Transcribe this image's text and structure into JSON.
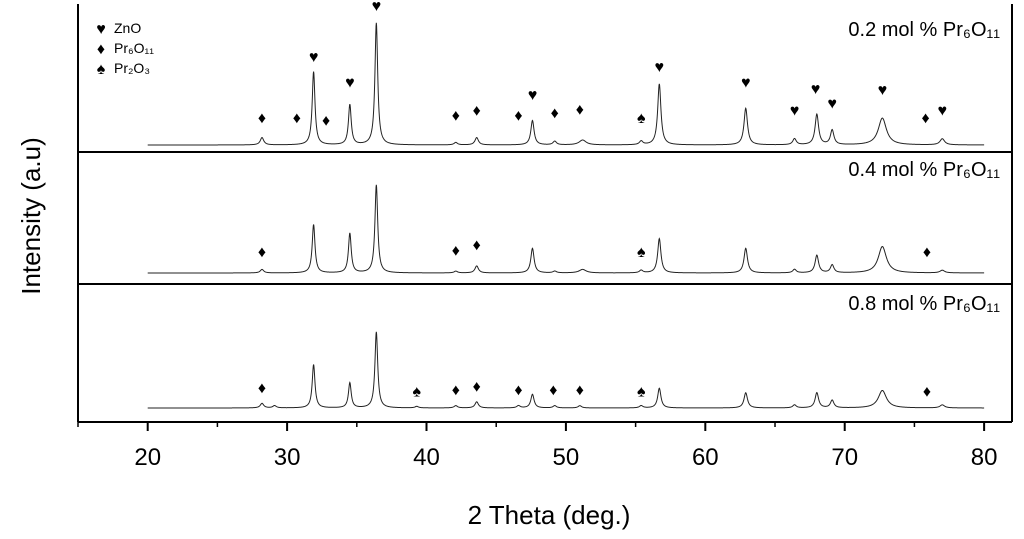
{
  "chart_data": {
    "type": "line",
    "xlabel": "2 Theta (deg.)",
    "ylabel": "Intensity (a.u)",
    "xlim": [
      15,
      82
    ],
    "xticks": [
      20,
      30,
      40,
      50,
      60,
      70,
      80
    ],
    "legend": {
      "placement": "top-left",
      "entries": [
        {
          "symbol": "♥",
          "label": "ZnO"
        },
        {
          "symbol": "♦",
          "label": "Pr₆O₁₁"
        },
        {
          "symbol": "♠",
          "label": "Pr₂O₃"
        }
      ]
    },
    "panels": [
      {
        "label": "0.2 mol % Pr₆O₁₁",
        "peaks": [
          {
            "x": 28.2,
            "h": 0.06,
            "w": 0.15
          },
          {
            "x": 31.9,
            "h": 0.6,
            "w": 0.12
          },
          {
            "x": 34.5,
            "h": 0.33,
            "w": 0.12
          },
          {
            "x": 36.4,
            "h": 1.0,
            "w": 0.12
          },
          {
            "x": 42.1,
            "h": 0.02,
            "w": 0.15
          },
          {
            "x": 43.6,
            "h": 0.06,
            "w": 0.15
          },
          {
            "x": 47.6,
            "h": 0.2,
            "w": 0.14
          },
          {
            "x": 49.2,
            "h": 0.03,
            "w": 0.15
          },
          {
            "x": 51.2,
            "h": 0.04,
            "w": 0.3
          },
          {
            "x": 55.4,
            "h": 0.03,
            "w": 0.15
          },
          {
            "x": 56.7,
            "h": 0.5,
            "w": 0.14
          },
          {
            "x": 62.9,
            "h": 0.3,
            "w": 0.15
          },
          {
            "x": 66.4,
            "h": 0.05,
            "w": 0.15
          },
          {
            "x": 68.0,
            "h": 0.25,
            "w": 0.15
          },
          {
            "x": 69.1,
            "h": 0.12,
            "w": 0.15
          },
          {
            "x": 72.7,
            "h": 0.22,
            "w": 0.35
          },
          {
            "x": 77.0,
            "h": 0.05,
            "w": 0.2
          }
        ],
        "markers": [
          {
            "x": 28.2,
            "symbol": "♦",
            "h": 0.18
          },
          {
            "x": 30.7,
            "symbol": "♦",
            "h": 0.18
          },
          {
            "x": 31.9,
            "symbol": "♥",
            "h": 0.68
          },
          {
            "x": 32.8,
            "symbol": "♦",
            "h": 0.16
          },
          {
            "x": 34.5,
            "symbol": "♥",
            "h": 0.47
          },
          {
            "x": 36.4,
            "symbol": "♥",
            "h": 1.1
          },
          {
            "x": 42.1,
            "symbol": "♦",
            "h": 0.2
          },
          {
            "x": 43.6,
            "symbol": "♦",
            "h": 0.24
          },
          {
            "x": 46.6,
            "symbol": "♦",
            "h": 0.2
          },
          {
            "x": 47.6,
            "symbol": "♥",
            "h": 0.37
          },
          {
            "x": 49.2,
            "symbol": "♦",
            "h": 0.22
          },
          {
            "x": 51.0,
            "symbol": "♦",
            "h": 0.25
          },
          {
            "x": 55.4,
            "symbol": "♠",
            "h": 0.18
          },
          {
            "x": 56.7,
            "symbol": "♥",
            "h": 0.6
          },
          {
            "x": 62.9,
            "symbol": "♥",
            "h": 0.47
          },
          {
            "x": 66.4,
            "symbol": "♥",
            "h": 0.24
          },
          {
            "x": 67.9,
            "symbol": "♥",
            "h": 0.42
          },
          {
            "x": 69.1,
            "symbol": "♥",
            "h": 0.3
          },
          {
            "x": 72.7,
            "symbol": "♥",
            "h": 0.41
          },
          {
            "x": 75.8,
            "symbol": "♦",
            "h": 0.18
          },
          {
            "x": 77.0,
            "symbol": "♥",
            "h": 0.24
          }
        ]
      },
      {
        "label": "0.4 mol % Pr₆O₁₁",
        "peaks": [
          {
            "x": 28.2,
            "h": 0.04,
            "w": 0.15
          },
          {
            "x": 31.9,
            "h": 0.55,
            "w": 0.12
          },
          {
            "x": 34.5,
            "h": 0.45,
            "w": 0.12
          },
          {
            "x": 36.4,
            "h": 1.0,
            "w": 0.12
          },
          {
            "x": 42.1,
            "h": 0.02,
            "w": 0.15
          },
          {
            "x": 43.6,
            "h": 0.08,
            "w": 0.15
          },
          {
            "x": 47.6,
            "h": 0.28,
            "w": 0.14
          },
          {
            "x": 49.2,
            "h": 0.02,
            "w": 0.15
          },
          {
            "x": 51.2,
            "h": 0.04,
            "w": 0.3
          },
          {
            "x": 55.4,
            "h": 0.03,
            "w": 0.15
          },
          {
            "x": 56.7,
            "h": 0.39,
            "w": 0.14
          },
          {
            "x": 62.9,
            "h": 0.28,
            "w": 0.15
          },
          {
            "x": 66.4,
            "h": 0.04,
            "w": 0.15
          },
          {
            "x": 68.0,
            "h": 0.2,
            "w": 0.15
          },
          {
            "x": 69.1,
            "h": 0.09,
            "w": 0.15
          },
          {
            "x": 72.7,
            "h": 0.3,
            "w": 0.35
          },
          {
            "x": 77.0,
            "h": 0.03,
            "w": 0.2
          }
        ],
        "markers": [
          {
            "x": 28.2,
            "symbol": "♦",
            "h": 0.18
          },
          {
            "x": 42.1,
            "symbol": "♦",
            "h": 0.2
          },
          {
            "x": 43.6,
            "symbol": "♦",
            "h": 0.26
          },
          {
            "x": 55.4,
            "symbol": "♠",
            "h": 0.18
          },
          {
            "x": 75.9,
            "symbol": "♦",
            "h": 0.18
          }
        ]
      },
      {
        "label": "0.8 mol % Pr₆O₁₁",
        "peaks": [
          {
            "x": 28.2,
            "h": 0.06,
            "w": 0.15
          },
          {
            "x": 29.1,
            "h": 0.03,
            "w": 0.15
          },
          {
            "x": 31.9,
            "h": 0.57,
            "w": 0.12
          },
          {
            "x": 34.5,
            "h": 0.33,
            "w": 0.12
          },
          {
            "x": 36.4,
            "h": 1.0,
            "w": 0.12
          },
          {
            "x": 39.3,
            "h": 0.02,
            "w": 0.15
          },
          {
            "x": 42.1,
            "h": 0.03,
            "w": 0.15
          },
          {
            "x": 43.6,
            "h": 0.08,
            "w": 0.15
          },
          {
            "x": 46.6,
            "h": 0.03,
            "w": 0.15
          },
          {
            "x": 47.6,
            "h": 0.18,
            "w": 0.14
          },
          {
            "x": 49.2,
            "h": 0.03,
            "w": 0.15
          },
          {
            "x": 51.0,
            "h": 0.03,
            "w": 0.15
          },
          {
            "x": 55.4,
            "h": 0.03,
            "w": 0.15
          },
          {
            "x": 56.7,
            "h": 0.26,
            "w": 0.14
          },
          {
            "x": 62.9,
            "h": 0.2,
            "w": 0.15
          },
          {
            "x": 66.4,
            "h": 0.04,
            "w": 0.15
          },
          {
            "x": 68.0,
            "h": 0.2,
            "w": 0.15
          },
          {
            "x": 69.1,
            "h": 0.1,
            "w": 0.15
          },
          {
            "x": 72.7,
            "h": 0.23,
            "w": 0.35
          },
          {
            "x": 77.0,
            "h": 0.04,
            "w": 0.2
          }
        ],
        "markers": [
          {
            "x": 28.2,
            "symbol": "♦",
            "h": 0.2
          },
          {
            "x": 39.3,
            "symbol": "♠",
            "h": 0.15
          },
          {
            "x": 42.1,
            "symbol": "♦",
            "h": 0.17
          },
          {
            "x": 43.6,
            "symbol": "♦",
            "h": 0.22
          },
          {
            "x": 46.6,
            "symbol": "♦",
            "h": 0.17
          },
          {
            "x": 49.1,
            "symbol": "♦",
            "h": 0.17
          },
          {
            "x": 51.0,
            "symbol": "♦",
            "h": 0.17
          },
          {
            "x": 55.4,
            "symbol": "♠",
            "h": 0.15
          },
          {
            "x": 75.9,
            "symbol": "♦",
            "h": 0.15
          }
        ]
      }
    ],
    "grid": false
  }
}
